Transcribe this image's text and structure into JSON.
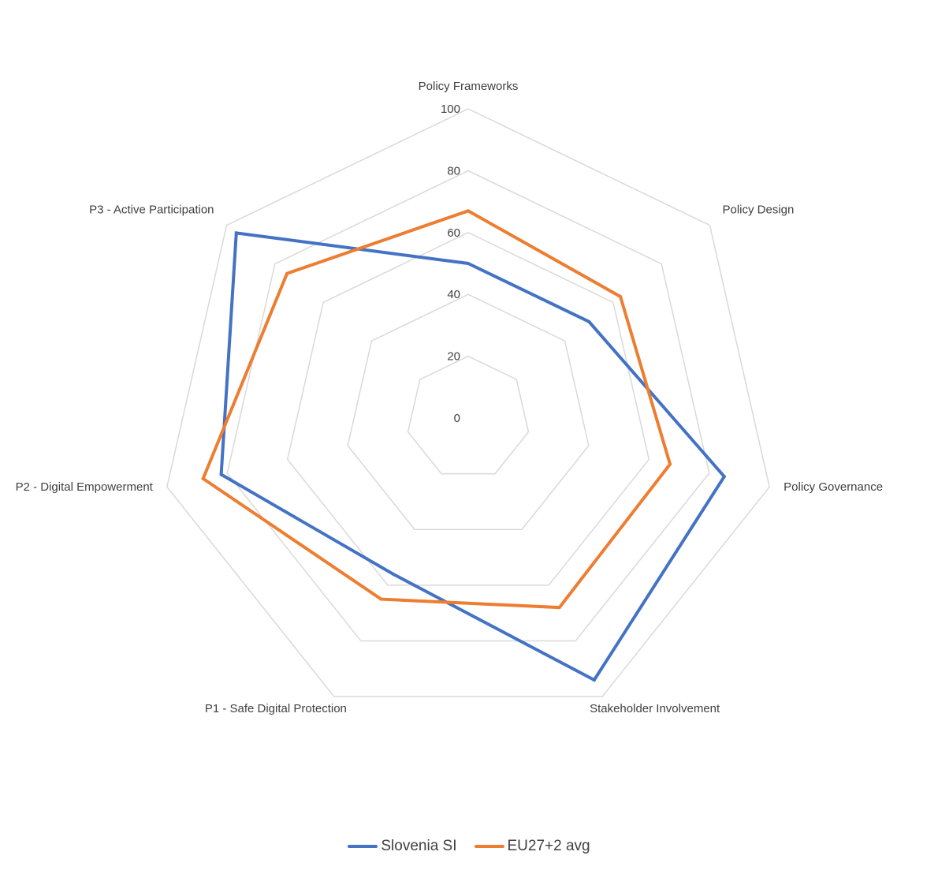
{
  "chart_data": {
    "type": "radar",
    "title": "",
    "axes": [
      "Policy Frameworks",
      "Policy Design",
      "Policy Governance",
      "Stakeholder Involvement",
      "P1 - Safe Digital Protection",
      "P2 - Digital Empowerment",
      "P3 - Active Participation"
    ],
    "r_ticks": [
      "0",
      "20",
      "40",
      "60",
      "80",
      "100"
    ],
    "r_tick_values": [
      0,
      20,
      40,
      60,
      80,
      100
    ],
    "rlim": [
      0,
      100
    ],
    "grid": true,
    "series": [
      {
        "name": "Slovenia SI",
        "color": "#4472C4",
        "values": [
          50,
          50,
          85,
          94,
          56,
          82,
          96
        ]
      },
      {
        "name": "EU27+2 avg",
        "color": "#ED7D31",
        "values": [
          67,
          63,
          67,
          68,
          65,
          88,
          75
        ]
      }
    ],
    "legend_position": "bottom"
  }
}
